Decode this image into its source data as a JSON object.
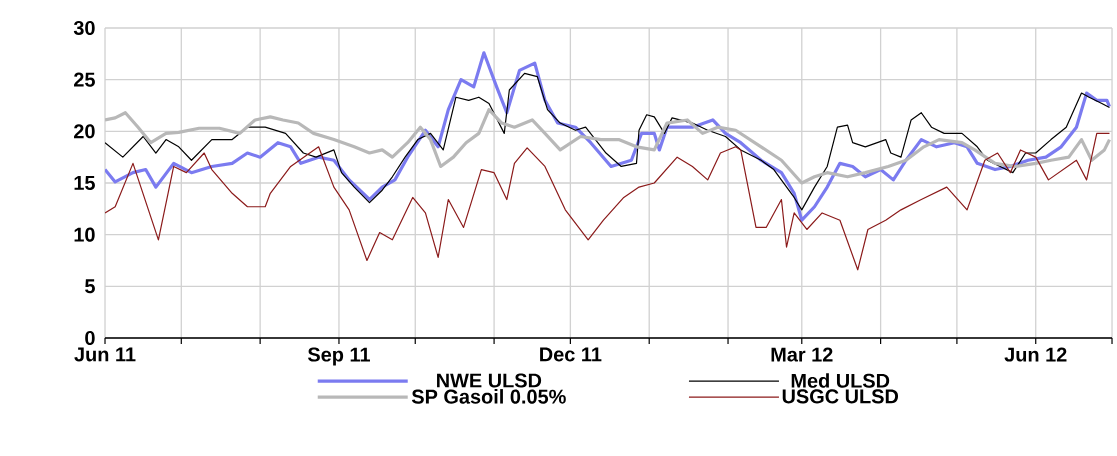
{
  "chart_data": {
    "type": "line",
    "xlim": [
      "2011-06-01",
      "2012-07-01"
    ],
    "ylim": [
      0,
      30
    ],
    "yticks": [
      0,
      5,
      10,
      15,
      20,
      25,
      30
    ],
    "xticks": [
      {
        "value": "2011-06-01",
        "label": "Jun 11"
      },
      {
        "value": "2011-07-01",
        "label": null
      },
      {
        "value": "2011-08-01",
        "label": null
      },
      {
        "value": "2011-09-01",
        "label": "Sep 11"
      },
      {
        "value": "2011-10-01",
        "label": null
      },
      {
        "value": "2011-11-01",
        "label": null
      },
      {
        "value": "2011-12-01",
        "label": "Dec 11"
      },
      {
        "value": "2012-01-01",
        "label": null
      },
      {
        "value": "2012-02-01",
        "label": null
      },
      {
        "value": "2012-03-01",
        "label": "Mar 12"
      },
      {
        "value": "2012-04-01",
        "label": null
      },
      {
        "value": "2012-05-01",
        "label": null
      },
      {
        "value": "2012-06-01",
        "label": "Jun 12"
      },
      {
        "value": "2012-07-01",
        "label": null
      }
    ],
    "grid": true,
    "legend": "bottom",
    "marker": "none",
    "line_style": "solid",
    "series": [
      {
        "name": "NWE ULSD",
        "color": "#7b7bf0",
        "x": [
          "2011-06-01",
          "2011-06-05",
          "2011-06-12",
          "2011-06-17",
          "2011-06-21",
          "2011-06-28",
          "2011-07-05",
          "2011-07-13",
          "2011-07-21",
          "2011-07-27",
          "2011-08-01",
          "2011-08-08",
          "2011-08-13",
          "2011-08-17",
          "2011-08-24",
          "2011-08-30",
          "2011-09-05",
          "2011-09-13",
          "2011-09-18",
          "2011-09-23",
          "2011-09-28",
          "2011-10-05",
          "2011-10-10",
          "2011-10-14",
          "2011-10-19",
          "2011-10-24",
          "2011-10-28",
          "2011-11-02",
          "2011-11-06",
          "2011-11-11",
          "2011-11-17",
          "2011-11-21",
          "2011-11-26",
          "2011-12-03",
          "2011-12-09",
          "2011-12-17",
          "2011-12-25",
          "2011-12-29",
          "2012-01-03",
          "2012-01-05",
          "2012-01-08",
          "2012-01-18",
          "2012-01-26",
          "2012-01-31",
          "2012-02-06",
          "2012-02-14",
          "2012-02-22",
          "2012-02-27",
          "2012-03-01",
          "2012-03-06",
          "2012-03-11",
          "2012-03-16",
          "2012-03-21",
          "2012-03-26",
          "2012-04-01",
          "2012-04-06",
          "2012-04-11",
          "2012-04-17",
          "2012-04-23",
          "2012-04-30",
          "2012-05-05",
          "2012-05-09",
          "2012-05-16",
          "2012-05-22",
          "2012-05-29",
          "2012-06-05",
          "2012-06-11",
          "2012-06-17",
          "2012-06-21",
          "2012-06-25",
          "2012-06-29",
          "2012-06-30"
        ],
        "values": [
          16.3,
          15.1,
          16.0,
          16.3,
          14.6,
          16.9,
          16.0,
          16.6,
          16.9,
          17.9,
          17.5,
          18.9,
          18.5,
          16.9,
          17.5,
          17.2,
          15.3,
          13.4,
          14.6,
          15.3,
          17.5,
          20.1,
          18.5,
          22.1,
          25.0,
          24.3,
          27.6,
          24.3,
          21.8,
          25.9,
          26.6,
          23.0,
          20.8,
          20.4,
          18.9,
          16.6,
          17.2,
          19.8,
          19.8,
          18.2,
          20.4,
          20.4,
          21.1,
          19.8,
          18.9,
          17.2,
          16.0,
          14.0,
          11.4,
          12.7,
          14.6,
          16.9,
          16.6,
          15.6,
          16.3,
          15.3,
          17.2,
          19.2,
          18.5,
          18.9,
          18.5,
          16.9,
          16.3,
          16.6,
          17.2,
          17.5,
          18.5,
          20.4,
          23.7,
          23.0,
          23.0,
          22.4
        ]
      },
      {
        "name": "Med ULSD",
        "color": "#000000",
        "x": [
          "2011-06-01",
          "2011-06-08",
          "2011-06-16",
          "2011-06-21",
          "2011-06-25",
          "2011-06-30",
          "2011-07-05",
          "2011-07-13",
          "2011-07-21",
          "2011-07-27",
          "2011-08-03",
          "2011-08-11",
          "2011-08-18",
          "2011-08-23",
          "2011-08-30",
          "2011-09-02",
          "2011-09-07",
          "2011-09-13",
          "2011-09-18",
          "2011-09-22",
          "2011-09-27",
          "2011-10-02",
          "2011-10-07",
          "2011-10-12",
          "2011-10-17",
          "2011-10-22",
          "2011-10-26",
          "2011-10-30",
          "2011-11-05",
          "2011-11-07",
          "2011-11-13",
          "2011-11-18",
          "2011-11-22",
          "2011-11-27",
          "2011-12-03",
          "2011-12-07",
          "2011-12-15",
          "2011-12-21",
          "2011-12-27",
          "2011-12-28",
          "2011-12-31",
          "2012-01-03",
          "2012-01-07",
          "2012-01-10",
          "2012-01-18",
          "2012-01-24",
          "2012-01-31",
          "2012-02-06",
          "2012-02-14",
          "2012-02-19",
          "2012-02-27",
          "2012-03-01",
          "2012-03-06",
          "2012-03-11",
          "2012-03-15",
          "2012-03-19",
          "2012-03-21",
          "2012-03-26",
          "2012-04-03",
          "2012-04-05",
          "2012-04-09",
          "2012-04-13",
          "2012-04-17",
          "2012-04-21",
          "2012-04-26",
          "2012-05-03",
          "2012-05-09",
          "2012-05-13",
          "2012-05-18",
          "2012-05-23",
          "2012-05-28",
          "2012-06-01",
          "2012-06-07",
          "2012-06-13",
          "2012-06-19",
          "2012-06-22",
          "2012-06-27",
          "2012-06-30"
        ],
        "values": [
          18.9,
          17.5,
          19.5,
          17.9,
          19.2,
          18.5,
          17.2,
          19.2,
          19.2,
          20.4,
          20.4,
          19.8,
          17.9,
          17.5,
          18.2,
          16.0,
          14.6,
          13.1,
          14.3,
          15.6,
          17.5,
          19.2,
          19.8,
          18.2,
          23.3,
          23.0,
          23.3,
          22.7,
          19.8,
          24.0,
          25.6,
          25.3,
          22.1,
          20.8,
          20.1,
          20.4,
          17.9,
          16.6,
          16.9,
          20.1,
          21.6,
          21.4,
          19.8,
          21.3,
          20.8,
          20.1,
          19.5,
          18.2,
          17.2,
          16.3,
          13.6,
          12.4,
          14.6,
          16.6,
          20.4,
          20.6,
          18.9,
          18.5,
          19.2,
          17.9,
          17.5,
          21.1,
          21.8,
          20.4,
          19.8,
          19.8,
          18.5,
          17.2,
          16.6,
          16.0,
          17.9,
          17.9,
          19.2,
          20.4,
          23.7,
          23.3,
          22.7,
          22.3
        ]
      },
      {
        "name": "SP Gasoil 0.05%",
        "color": "#b8b8b8",
        "x": [
          "2011-06-01",
          "2011-06-05",
          "2011-06-09",
          "2011-06-14",
          "2011-06-19",
          "2011-06-25",
          "2011-06-30",
          "2011-07-08",
          "2011-07-16",
          "2011-07-24",
          "2011-07-30",
          "2011-08-05",
          "2011-08-10",
          "2011-08-16",
          "2011-08-22",
          "2011-08-30",
          "2011-09-07",
          "2011-09-13",
          "2011-09-18",
          "2011-09-22",
          "2011-09-28",
          "2011-10-03",
          "2011-10-07",
          "2011-10-11",
          "2011-10-16",
          "2011-10-21",
          "2011-10-26",
          "2011-10-30",
          "2011-11-04",
          "2011-11-09",
          "2011-11-16",
          "2011-11-21",
          "2011-11-27",
          "2011-12-05",
          "2011-12-13",
          "2011-12-20",
          "2011-12-27",
          "2012-01-03",
          "2012-01-08",
          "2012-01-16",
          "2012-01-22",
          "2012-01-28",
          "2012-02-04",
          "2012-02-14",
          "2012-02-22",
          "2012-03-01",
          "2012-03-06",
          "2012-03-11",
          "2012-03-19",
          "2012-03-26",
          "2012-04-04",
          "2012-04-11",
          "2012-04-18",
          "2012-04-24",
          "2012-05-03",
          "2012-05-08",
          "2012-05-16",
          "2012-05-24",
          "2012-06-01",
          "2012-06-07",
          "2012-06-14",
          "2012-06-19",
          "2012-06-23",
          "2012-06-28",
          "2012-06-30"
        ],
        "values": [
          21.1,
          21.3,
          21.8,
          20.4,
          18.9,
          19.8,
          19.9,
          20.3,
          20.3,
          19.8,
          21.1,
          21.4,
          21.1,
          20.8,
          19.8,
          19.2,
          18.5,
          17.9,
          18.2,
          17.5,
          18.9,
          20.4,
          19.2,
          16.6,
          17.5,
          18.9,
          19.8,
          22.1,
          20.8,
          20.4,
          21.1,
          19.8,
          18.2,
          19.5,
          19.2,
          19.2,
          18.5,
          18.2,
          20.8,
          21.1,
          19.8,
          20.4,
          20.1,
          18.5,
          17.2,
          15.0,
          15.6,
          16.0,
          15.6,
          16.0,
          16.6,
          17.2,
          18.5,
          19.2,
          18.9,
          18.2,
          16.9,
          16.6,
          16.9,
          17.2,
          17.5,
          19.2,
          17.2,
          18.2,
          19.2
        ]
      },
      {
        "name": "USGC ULSD",
        "color": "#8b1a1a",
        "x": [
          "2011-06-01",
          "2011-06-05",
          "2011-06-12",
          "2011-06-22",
          "2011-06-28",
          "2011-07-03",
          "2011-07-10",
          "2011-07-13",
          "2011-07-21",
          "2011-07-27",
          "2011-08-03",
          "2011-08-05",
          "2011-08-13",
          "2011-08-24",
          "2011-08-30",
          "2011-09-05",
          "2011-09-12",
          "2011-09-17",
          "2011-09-22",
          "2011-09-30",
          "2011-10-05",
          "2011-10-10",
          "2011-10-14",
          "2011-10-20",
          "2011-10-27",
          "2011-11-01",
          "2011-11-06",
          "2011-11-09",
          "2011-11-14",
          "2011-11-21",
          "2011-11-29",
          "2011-12-08",
          "2011-12-14",
          "2011-12-22",
          "2011-12-28",
          "2012-01-03",
          "2012-01-12",
          "2012-01-18",
          "2012-01-24",
          "2012-01-29",
          "2012-02-04",
          "2012-02-06",
          "2012-02-12",
          "2012-02-16",
          "2012-02-22",
          "2012-02-24",
          "2012-02-27",
          "2012-03-03",
          "2012-03-09",
          "2012-03-16",
          "2012-03-23",
          "2012-03-27",
          "2012-04-03",
          "2012-04-09",
          "2012-04-17",
          "2012-04-27",
          "2012-05-05",
          "2012-05-12",
          "2012-05-17",
          "2012-05-22",
          "2012-05-26",
          "2012-06-01",
          "2012-06-06",
          "2012-06-17",
          "2012-06-21",
          "2012-06-25",
          "2012-06-30"
        ],
        "values": [
          12.1,
          12.7,
          16.9,
          9.5,
          16.6,
          16.0,
          17.9,
          16.3,
          14.0,
          12.7,
          12.7,
          14.0,
          16.6,
          18.5,
          14.6,
          12.4,
          7.5,
          10.2,
          9.5,
          13.6,
          12.1,
          7.8,
          13.4,
          10.7,
          16.3,
          16.0,
          13.4,
          16.9,
          18.4,
          16.6,
          12.4,
          9.5,
          11.4,
          13.6,
          14.6,
          15.0,
          17.5,
          16.6,
          15.3,
          17.9,
          18.5,
          18.2,
          10.7,
          10.7,
          13.4,
          8.8,
          12.1,
          10.5,
          12.1,
          11.4,
          6.6,
          10.5,
          11.4,
          12.4,
          13.4,
          14.6,
          12.4,
          17.2,
          17.9,
          16.0,
          18.2,
          17.5,
          15.3,
          17.2,
          15.3,
          19.8,
          19.8
        ]
      }
    ]
  }
}
